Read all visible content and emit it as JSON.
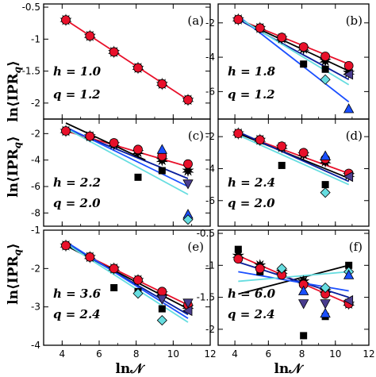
{
  "figure": {
    "ylabel": "ln⟨IPR",
    "ylabel_sub": "q",
    "ylabel_close": "⟩",
    "xlabel": "ln𝒩"
  },
  "colors": {
    "red": "#e8102a",
    "black": "#000000",
    "navy": "#0a1e9c",
    "blue": "#1a4fff",
    "cyan": "#66dde0",
    "magenta": "#d4005a",
    "purple": "#4a3d8f"
  },
  "chart_data": [
    {
      "type": "scatter",
      "panel": "(a)",
      "params": [
        "h = 1.0",
        "q = 1.2"
      ],
      "xlim": [
        3,
        12
      ],
      "ylim": [
        -2.25,
        -0.45
      ],
      "xticks": [
        4,
        6,
        8,
        10,
        12
      ],
      "xticklabels": [
        "",
        "",
        "",
        "",
        ""
      ],
      "yticks": [
        -2,
        -1.5,
        -1,
        -0.5
      ],
      "yticklabels": [
        "-2",
        "-1.5",
        "-1",
        "-0.5"
      ],
      "series": [
        {
          "marker": "star",
          "color": "#000000",
          "x": [
            4.2,
            5.5,
            6.8,
            8.1,
            9.4,
            10.8
          ],
          "y": [
            -0.7,
            -0.95,
            -1.2,
            -1.45,
            -1.7,
            -1.95
          ]
        },
        {
          "marker": "circle",
          "color": "#e8102a",
          "x": [
            4.2,
            5.5,
            6.8,
            8.1,
            9.4,
            10.8
          ],
          "y": [
            -0.7,
            -0.95,
            -1.2,
            -1.45,
            -1.7,
            -1.95
          ]
        }
      ],
      "fits": [
        {
          "color": "#e8102a",
          "x": [
            4.2,
            10.8
          ],
          "y": [
            -0.7,
            -1.95
          ]
        }
      ]
    },
    {
      "type": "scatter",
      "panel": "(b)",
      "params": [
        "h = 1.8",
        "q = 1.2"
      ],
      "xlim": [
        3,
        12
      ],
      "ylim": [
        -7.6,
        -0.9
      ],
      "xticks": [
        4,
        6,
        8,
        10,
        12
      ],
      "xticklabels": [
        "",
        "",
        "",
        "",
        ""
      ],
      "yticks": [
        -6,
        -4,
        -2
      ],
      "yticklabels": [
        "-6",
        "-4",
        "-2"
      ],
      "series": [
        {
          "marker": "square",
          "color": "#000000",
          "x": [
            4.2,
            5.5,
            6.8,
            8.1,
            9.4
          ],
          "y": [
            -1.8,
            -2.3,
            -2.9,
            -4.4,
            -4.7
          ]
        },
        {
          "marker": "star",
          "color": "#000000",
          "x": [
            4.2,
            5.5,
            6.8,
            8.1,
            9.4,
            10.8
          ],
          "y": [
            -1.8,
            -2.3,
            -2.9,
            -3.5,
            -4.2,
            -4.9
          ]
        },
        {
          "marker": "circle",
          "color": "#e8102a",
          "x": [
            4.2,
            5.5,
            6.8,
            8.1,
            9.4,
            10.8
          ],
          "y": [
            -1.8,
            -2.3,
            -2.85,
            -3.4,
            -3.95,
            -4.5
          ]
        },
        {
          "marker": "diamond",
          "color": "#66dde0",
          "x": [
            9.4
          ],
          "y": [
            -5.3
          ]
        },
        {
          "marker": "triangle-left",
          "color": "#4a3d8f",
          "x": [
            10.8
          ],
          "y": [
            -5.0
          ]
        },
        {
          "marker": "triangle-up",
          "color": "#1a4fff",
          "x": [
            10.8
          ],
          "y": [
            -7.0
          ]
        }
      ],
      "fits": [
        {
          "color": "#e8102a",
          "x": [
            4.2,
            10.8
          ],
          "y": [
            -1.8,
            -4.4
          ]
        },
        {
          "color": "#000000",
          "x": [
            4.2,
            10.8
          ],
          "y": [
            -1.8,
            -4.8
          ]
        },
        {
          "color": "#0a1e9c",
          "x": [
            4.2,
            10.8
          ],
          "y": [
            -1.8,
            -5.3
          ]
        },
        {
          "color": "#1a4fff",
          "x": [
            4.2,
            10.8
          ],
          "y": [
            -1.6,
            -6.6
          ]
        },
        {
          "color": "#66dde0",
          "x": [
            4.2,
            10.8
          ],
          "y": [
            -1.7,
            -5.6
          ]
        }
      ]
    },
    {
      "type": "scatter",
      "panel": "(c)",
      "params": [
        "h = 2.2",
        "q = 2.0"
      ],
      "xlim": [
        3,
        12
      ],
      "ylim": [
        -9.0,
        -0.9
      ],
      "xticks": [
        4,
        6,
        8,
        10,
        12
      ],
      "xticklabels": [
        "",
        "",
        "",
        "",
        ""
      ],
      "yticks": [
        -8,
        -6,
        -4,
        -2
      ],
      "yticklabels": [
        "-8",
        "-6",
        "-4",
        "-2"
      ],
      "series": [
        {
          "marker": "square",
          "color": "#000000",
          "x": [
            4.2,
            5.5,
            8.1,
            9.4
          ],
          "y": [
            -1.8,
            -2.2,
            -5.3,
            -4.8
          ]
        },
        {
          "marker": "star",
          "color": "#000000",
          "x": [
            4.2,
            5.5,
            6.8,
            8.1,
            9.4,
            10.8
          ],
          "y": [
            -1.8,
            -2.2,
            -2.8,
            -3.4,
            -4.0,
            -4.8
          ]
        },
        {
          "marker": "circle",
          "color": "#e8102a",
          "x": [
            4.2,
            5.5,
            6.8,
            8.1,
            9.4,
            10.8
          ],
          "y": [
            -1.8,
            -2.2,
            -2.7,
            -3.2,
            -3.7,
            -4.3
          ]
        },
        {
          "marker": "triangle-up",
          "color": "#1a4fff",
          "x": [
            9.4,
            10.8
          ],
          "y": [
            -3.2,
            -8.1
          ]
        },
        {
          "marker": "triangle-down",
          "color": "#4a3d8f",
          "x": [
            10.8
          ],
          "y": [
            -5.8
          ]
        },
        {
          "marker": "diamond",
          "color": "#66dde0",
          "x": [
            10.8
          ],
          "y": [
            -8.5
          ]
        }
      ],
      "fits": [
        {
          "color": "#e8102a",
          "x": [
            4.2,
            10.8
          ],
          "y": [
            -1.8,
            -4.5
          ]
        },
        {
          "color": "#0a1e9c",
          "x": [
            4.2,
            10.8
          ],
          "y": [
            -1.6,
            -5.4
          ]
        },
        {
          "color": "#1a4fff",
          "x": [
            4.2,
            10.8
          ],
          "y": [
            -1.5,
            -6.0
          ]
        },
        {
          "color": "#66dde0",
          "x": [
            4.2,
            10.8
          ],
          "y": [
            -1.6,
            -6.6
          ]
        },
        {
          "color": "#000000",
          "x": [
            4.2,
            8.5
          ],
          "y": [
            -1.2,
            -4.0
          ]
        }
      ]
    },
    {
      "type": "scatter",
      "panel": "(d)",
      "params": [
        "h = 2.4",
        "q = 2.0"
      ],
      "xlim": [
        3,
        12
      ],
      "ylim": [
        -7.6,
        -0.9
      ],
      "xticks": [
        4,
        6,
        8,
        10,
        12
      ],
      "xticklabels": [
        "",
        "",
        "",
        "",
        ""
      ],
      "yticks": [
        -6,
        -4,
        -2
      ],
      "yticklabels": [
        "-6",
        "-4",
        "-2"
      ],
      "series": [
        {
          "marker": "square",
          "color": "#000000",
          "x": [
            4.2,
            6.8,
            9.4
          ],
          "y": [
            -1.8,
            -3.8,
            -5.0
          ]
        },
        {
          "marker": "star",
          "color": "#000000",
          "x": [
            4.2,
            5.5,
            6.8,
            8.1,
            9.4,
            10.8
          ],
          "y": [
            -1.8,
            -2.2,
            -2.65,
            -3.1,
            -3.55,
            -4.4
          ]
        },
        {
          "marker": "circle",
          "color": "#e8102a",
          "x": [
            4.2,
            5.5,
            6.8,
            8.1,
            9.4,
            10.8
          ],
          "y": [
            -1.8,
            -2.2,
            -2.6,
            -3.0,
            -3.4,
            -4.3
          ]
        },
        {
          "marker": "triangle-up",
          "color": "#1a4fff",
          "x": [
            9.4
          ],
          "y": [
            -3.2
          ]
        },
        {
          "marker": "diamond",
          "color": "#66dde0",
          "x": [
            9.4
          ],
          "y": [
            -5.5
          ]
        },
        {
          "marker": "triangle-left",
          "color": "#4a3d8f",
          "x": [
            10.8
          ],
          "y": [
            -4.5
          ]
        }
      ],
      "fits": [
        {
          "color": "#e8102a",
          "x": [
            4.2,
            10.8
          ],
          "y": [
            -1.8,
            -4.3
          ]
        },
        {
          "color": "#000000",
          "x": [
            4.2,
            10.8
          ],
          "y": [
            -1.8,
            -4.6
          ]
        },
        {
          "color": "#0a1e9c",
          "x": [
            4.2,
            10.8
          ],
          "y": [
            -1.7,
            -4.8
          ]
        },
        {
          "color": "#66dde0",
          "x": [
            4.2,
            10.8
          ],
          "y": [
            -1.9,
            -5.0
          ]
        }
      ]
    },
    {
      "type": "scatter",
      "panel": "(e)",
      "params": [
        "h = 3.6",
        "q = 2.4"
      ],
      "xlim": [
        3,
        12
      ],
      "ylim": [
        -4.0,
        -1.0
      ],
      "xticks": [
        4,
        6,
        8,
        10,
        12
      ],
      "xticklabels": [
        "4",
        "6",
        "8",
        "10",
        "12"
      ],
      "yticks": [
        -4,
        -3,
        -2,
        -1
      ],
      "yticklabels": [
        "-4",
        "-3",
        "-2",
        "-1"
      ],
      "series": [
        {
          "marker": "square",
          "color": "#000000",
          "x": [
            4.2,
            6.8,
            8.1,
            9.4
          ],
          "y": [
            -1.4,
            -2.5,
            -2.6,
            -3.05
          ]
        },
        {
          "marker": "star",
          "color": "#000000",
          "x": [
            4.2,
            5.5,
            6.8,
            8.1,
            9.4,
            10.8
          ],
          "y": [
            -1.4,
            -1.7,
            -2.0,
            -2.3,
            -2.65,
            -3.0
          ]
        },
        {
          "marker": "circle",
          "color": "#e8102a",
          "x": [
            4.2,
            5.5,
            6.8,
            8.1,
            9.4,
            10.8
          ],
          "y": [
            -1.4,
            -1.7,
            -2.0,
            -2.3,
            -2.6,
            -2.95
          ]
        },
        {
          "marker": "diamond",
          "color": "#66dde0",
          "x": [
            8.1,
            9.4
          ],
          "y": [
            -2.65,
            -3.35
          ]
        },
        {
          "marker": "triangle-down",
          "color": "#4a3d8f",
          "x": [
            9.4,
            10.8
          ],
          "y": [
            -2.8,
            -2.9
          ]
        },
        {
          "marker": "triangle-left",
          "color": "#4a3d8f",
          "x": [
            10.8
          ],
          "y": [
            -3.1
          ]
        }
      ],
      "fits": [
        {
          "color": "#e8102a",
          "x": [
            4.2,
            10.8
          ],
          "y": [
            -1.4,
            -2.95
          ]
        },
        {
          "color": "#000000",
          "x": [
            4.2,
            10.8
          ],
          "y": [
            -1.4,
            -3.05
          ]
        },
        {
          "color": "#0a1e9c",
          "x": [
            4.2,
            10.8
          ],
          "y": [
            -1.35,
            -3.2
          ]
        },
        {
          "color": "#1a4fff",
          "x": [
            4.2,
            10.8
          ],
          "y": [
            -1.3,
            -3.3
          ]
        },
        {
          "color": "#66dde0",
          "x": [
            4.2,
            10.8
          ],
          "y": [
            -1.35,
            -3.4
          ]
        }
      ]
    },
    {
      "type": "scatter",
      "panel": "(f)",
      "params": [
        "h = 6.0",
        "q = 2.4"
      ],
      "xlim": [
        3,
        12
      ],
      "ylim": [
        -2.25,
        -0.45
      ],
      "xticks": [
        4,
        6,
        8,
        10,
        12
      ],
      "xticklabels": [
        "4",
        "6",
        "8",
        "10",
        "12"
      ],
      "yticks": [
        -2,
        -1.5,
        -1,
        -0.5
      ],
      "yticklabels": [
        "-2",
        "-1.5",
        "-1",
        "-0.5"
      ],
      "series": [
        {
          "marker": "square",
          "color": "#000000",
          "x": [
            4.2,
            5.5,
            6.8,
            8.1,
            9.4,
            10.8
          ],
          "y": [
            -0.75,
            -1.1,
            -1.1,
            -2.1,
            -1.8,
            -1.0
          ]
        },
        {
          "marker": "star",
          "color": "#000000",
          "x": [
            4.2,
            5.5,
            6.8,
            8.1,
            9.4,
            10.8
          ],
          "y": [
            -0.85,
            -1.0,
            -1.1,
            -1.25,
            -1.4,
            -1.6
          ]
        },
        {
          "marker": "circle",
          "color": "#e8102a",
          "x": [
            4.2,
            5.5,
            6.8,
            8.1,
            9.4,
            10.8
          ],
          "y": [
            -0.9,
            -1.05,
            -1.15,
            -1.3,
            -1.45,
            -1.6
          ]
        },
        {
          "marker": "diamond",
          "color": "#66dde0",
          "x": [
            6.8,
            9.4,
            10.8
          ],
          "y": [
            -1.05,
            -1.35,
            -1.1
          ]
        },
        {
          "marker": "triangle-up",
          "color": "#1a4fff",
          "x": [
            8.1,
            9.4,
            10.8
          ],
          "y": [
            -1.4,
            -1.75,
            -1.15
          ]
        },
        {
          "marker": "triangle-down",
          "color": "#4a3d8f",
          "x": [
            8.1,
            9.4
          ],
          "y": [
            -1.6,
            -1.6
          ]
        },
        {
          "marker": "triangle-left",
          "color": "#4a3d8f",
          "x": [
            10.8
          ],
          "y": [
            -1.55
          ]
        }
      ],
      "fits": [
        {
          "color": "#e8102a",
          "x": [
            4.2,
            10.8
          ],
          "y": [
            -0.85,
            -1.6
          ]
        },
        {
          "color": "#000000",
          "x": [
            4.2,
            10.8
          ],
          "y": [
            -1.45,
            -1.0
          ]
        },
        {
          "color": "#0a1e9c",
          "x": [
            4.2,
            10.8
          ],
          "y": [
            -0.95,
            -1.5
          ]
        },
        {
          "color": "#1a4fff",
          "x": [
            4.2,
            10.8
          ],
          "y": [
            -1.1,
            -1.4
          ]
        },
        {
          "color": "#66dde0",
          "x": [
            4.2,
            10.8
          ],
          "y": [
            -1.25,
            -1.1
          ]
        }
      ]
    }
  ]
}
